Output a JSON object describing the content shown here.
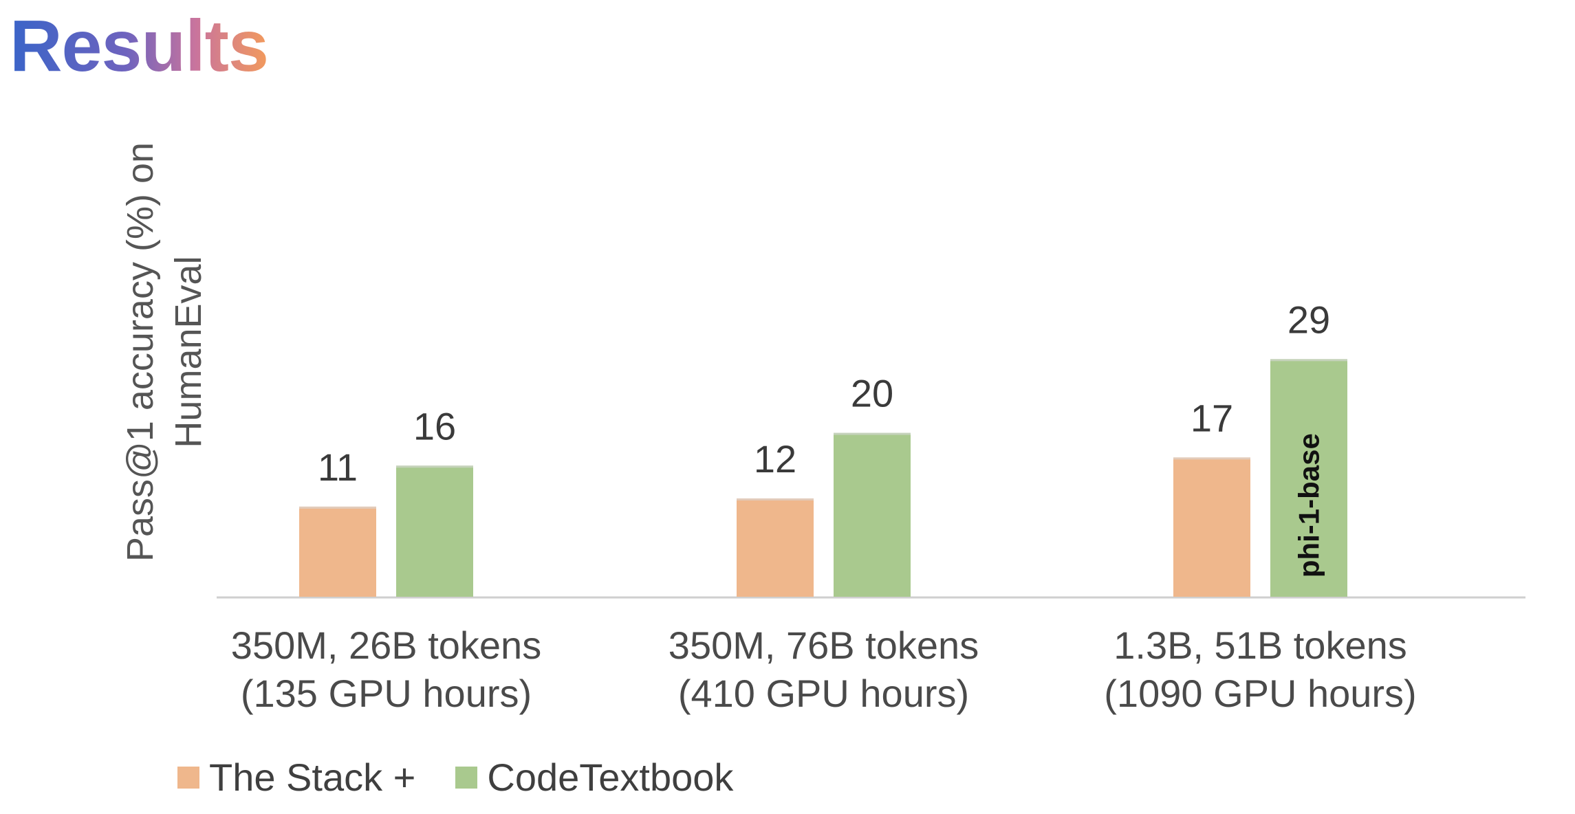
{
  "slide": {
    "title": "Results"
  },
  "chart_data": {
    "type": "bar",
    "title": "",
    "ylabel_lines": [
      "Pass@1 accuracy (%) on",
      "HumanEval"
    ],
    "xlabel": "",
    "ylim": [
      0,
      35
    ],
    "grid": false,
    "legend_position": "bottom-left",
    "categories": [
      [
        "350M, 26B tokens",
        "(135 GPU hours)"
      ],
      [
        "350M, 76B tokens",
        "(410 GPU hours)"
      ],
      [
        "1.3B, 51B tokens",
        "(1090 GPU hours)"
      ]
    ],
    "series": [
      {
        "name": "The Stack +",
        "color": "#efb78c",
        "values": [
          11,
          12,
          17
        ]
      },
      {
        "name": "CodeTextbook",
        "color": "#a9c98e",
        "values": [
          16,
          20,
          29
        ]
      }
    ],
    "annotations": [
      {
        "text": "phi-1-base",
        "series": 1,
        "category": 2
      }
    ]
  }
}
